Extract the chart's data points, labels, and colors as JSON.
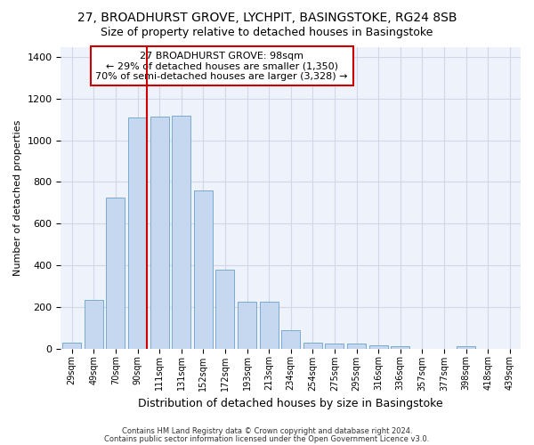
{
  "title": "27, BROADHURST GROVE, LYCHPIT, BASINGSTOKE, RG24 8SB",
  "subtitle": "Size of property relative to detached houses in Basingstoke",
  "xlabel": "Distribution of detached houses by size in Basingstoke",
  "ylabel": "Number of detached properties",
  "bar_values": [
    30,
    235,
    725,
    1110,
    1115,
    1120,
    760,
    378,
    225,
    225,
    88,
    30,
    25,
    22,
    17,
    12,
    0,
    0,
    10,
    0,
    0
  ],
  "x_labels": [
    "29sqm",
    "49sqm",
    "70sqm",
    "90sqm",
    "111sqm",
    "131sqm",
    "152sqm",
    "172sqm",
    "193sqm",
    "213sqm",
    "234sqm",
    "254sqm",
    "275sqm",
    "295sqm",
    "316sqm",
    "336sqm",
    "357sqm",
    "377sqm",
    "398sqm",
    "418sqm",
    "439sqm"
  ],
  "bar_color": "#c5d8f0",
  "bar_edge_color": "#7aaad0",
  "grid_color": "#d0d8e8",
  "background_color": "#eef2fa",
  "vline_color": "#cc0000",
  "vline_x_index": 3,
  "ylim": [
    0,
    1450
  ],
  "yticks": [
    0,
    200,
    400,
    600,
    800,
    1000,
    1200,
    1400
  ],
  "annotation_text": "27 BROADHURST GROVE: 98sqm\n← 29% of detached houses are smaller (1,350)\n70% of semi-detached houses are larger (3,328) →",
  "annotation_box_color": "#ffffff",
  "annotation_box_edge": "#cc0000",
  "footer_line1": "Contains HM Land Registry data © Crown copyright and database right 2024.",
  "footer_line2": "Contains public sector information licensed under the Open Government Licence v3.0."
}
